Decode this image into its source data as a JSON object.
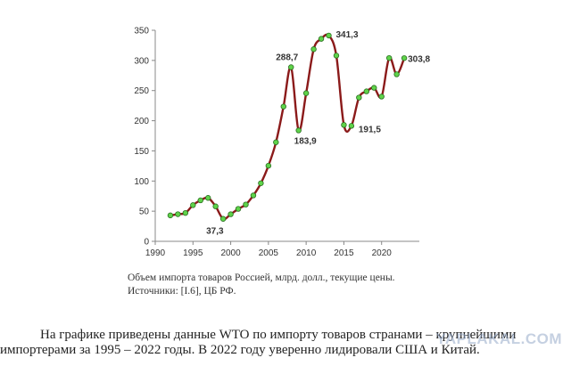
{
  "chart_data": {
    "type": "line",
    "title": "",
    "xlabel": "",
    "ylabel": "",
    "xlim": [
      1990,
      2025
    ],
    "ylim": [
      0,
      350
    ],
    "xticks": [
      1990,
      1995,
      2000,
      2005,
      2010,
      2015,
      2020
    ],
    "yticks": [
      0,
      50,
      100,
      150,
      200,
      250,
      300,
      350
    ],
    "grid": false,
    "series": [
      {
        "x": [
          1992,
          1993,
          1994,
          1995,
          1996,
          1997,
          1998,
          1999,
          2000,
          2001,
          2002,
          2003,
          2004,
          2005,
          2006,
          2007,
          2008,
          2009,
          2010,
          2011,
          2012,
          2013,
          2014,
          2015,
          2016,
          2017,
          2018,
          2019,
          2020,
          2021,
          2022,
          2023
        ],
        "values": [
          43,
          45,
          47,
          60,
          68,
          72,
          58,
          37.3,
          44.9,
          53.8,
          61,
          76.1,
          96.3,
          125.4,
          164.3,
          223.5,
          288.7,
          183.9,
          245.7,
          318.6,
          335.8,
          341.3,
          308,
          193,
          191.5,
          238.4,
          248.7,
          254.6,
          240,
          304,
          277,
          303.8
        ],
        "line_color": "#8b1a1a",
        "marker_color": "#5fd34a"
      }
    ],
    "annotations": [
      {
        "x": 2008,
        "y": 288.7,
        "text": "288,7"
      },
      {
        "x": 2009,
        "y": 183.9,
        "text": "183,9"
      },
      {
        "x": 1999,
        "y": 37.3,
        "text": "37,3"
      },
      {
        "x": 2013,
        "y": 341.3,
        "text": "341,3"
      },
      {
        "x": 2016,
        "y": 191.5,
        "text": "191,5"
      },
      {
        "x": 2023,
        "y": 303.8,
        "text": "303,8"
      }
    ]
  },
  "caption": {
    "line1": "Объем импорта товаров Россией, млрд. долл., текущие цены.",
    "line2": "Источники: [I.6], ЦБ РФ."
  },
  "paragraph": {
    "line1": "На графике приведены данные WTO  по импорту товаров странами – крупнейшими",
    "line2": "импортерами за 1995 – 2022 годы. В 2022 году уверенно лидировали США и Китай."
  },
  "watermark": "YAPLAKAL.COM"
}
